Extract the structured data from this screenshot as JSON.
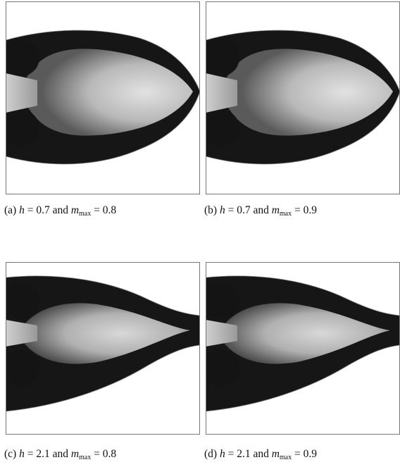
{
  "panels": [
    {
      "caption": {
        "label": "(a)",
        "h": "h",
        "h_rest": "= 0.7 and",
        "m": "m",
        "m_sub": "max",
        "m_rest": "= 0.8"
      }
    },
    {
      "caption": {
        "label": "(b)",
        "h": "h",
        "h_rest": "= 0.7 and",
        "m": "m",
        "m_sub": "max",
        "m_rest": "= 0.9"
      }
    },
    {
      "caption": {
        "label": "(c)",
        "h": "h",
        "h_rest": "= 2.1 and",
        "m": "m",
        "m_sub": "max",
        "m_rest": "= 0.8"
      }
    },
    {
      "caption": {
        "label": "(d)",
        "h": "h",
        "h_rest": "= 2.1 and",
        "m": "m",
        "m_sub": "max",
        "m_rest": "= 0.9"
      }
    }
  ]
}
